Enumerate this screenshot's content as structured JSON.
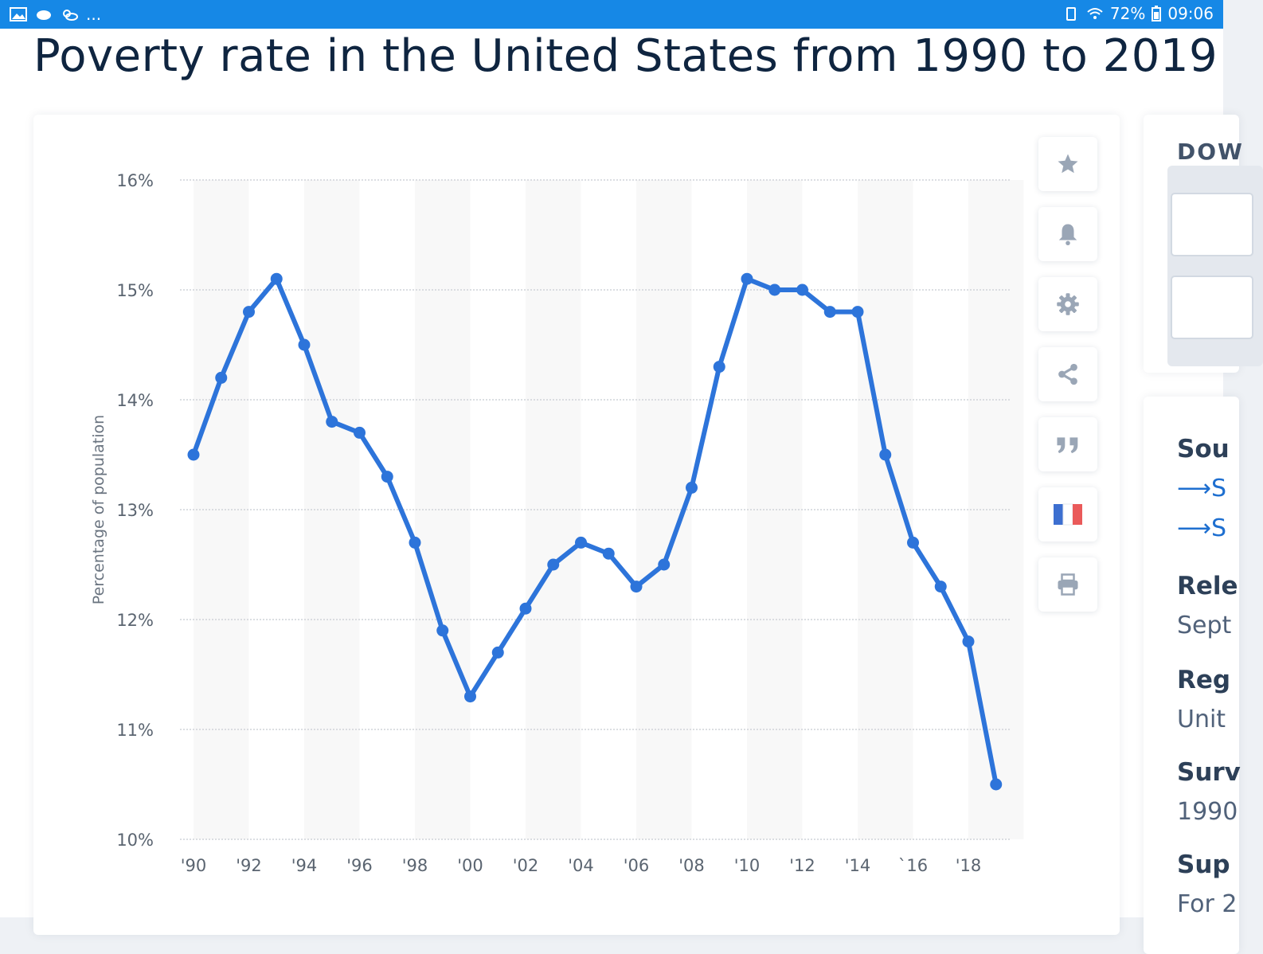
{
  "status_bar": {
    "left_text": "...",
    "battery": "72%",
    "time": "09:06"
  },
  "page": {
    "title": "Poverty rate in the United States from 1990 to 2019"
  },
  "toolbar": {
    "items": [
      "favorite",
      "notification",
      "settings",
      "share",
      "cite",
      "language",
      "print"
    ]
  },
  "download_panel": {
    "title": "DOW"
  },
  "info_panel": {
    "source_label": "Sou",
    "source_link_1": "S",
    "source_link_2": "S",
    "release_label": "Rele",
    "release_value": "Sept",
    "region_label": "Reg",
    "region_value": "Unit",
    "survey_label": "Surv",
    "survey_value": "1990",
    "supplementary_label": "Sup",
    "supplementary_value": "For 2"
  },
  "chart_data": {
    "type": "line",
    "title": "Poverty rate in the United States from 1990 to 2019",
    "xlabel": "",
    "ylabel": "Percentage of population",
    "ylim": [
      10,
      16
    ],
    "y_ticks": [
      "10%",
      "11%",
      "12%",
      "13%",
      "14%",
      "15%",
      "16%"
    ],
    "x_tick_labels": [
      "'90",
      "'92",
      "'94",
      "'96",
      "'98",
      "'00",
      "'02",
      "'04",
      "'06",
      "'08",
      "'10",
      "'12",
      "'14",
      "`16",
      "'18"
    ],
    "grid": true,
    "legend": "none",
    "colors": {
      "line": "#2d74da",
      "band": "#f8f8f8",
      "grid": "#cfd3d8"
    },
    "series": [
      {
        "name": "Poverty rate",
        "x": [
          1990,
          1991,
          1992,
          1993,
          1994,
          1995,
          1996,
          1997,
          1998,
          1999,
          2000,
          2001,
          2002,
          2003,
          2004,
          2005,
          2006,
          2007,
          2008,
          2009,
          2010,
          2011,
          2012,
          2013,
          2014,
          2015,
          2016,
          2017,
          2018,
          2019
        ],
        "values": [
          13.5,
          14.2,
          14.8,
          15.1,
          14.5,
          13.8,
          13.7,
          13.3,
          12.7,
          11.9,
          11.3,
          11.7,
          12.1,
          12.5,
          12.7,
          12.6,
          12.3,
          12.5,
          13.2,
          14.3,
          15.1,
          15.0,
          15.0,
          14.8,
          14.8,
          13.5,
          12.7,
          12.3,
          11.8,
          10.5
        ]
      }
    ]
  }
}
